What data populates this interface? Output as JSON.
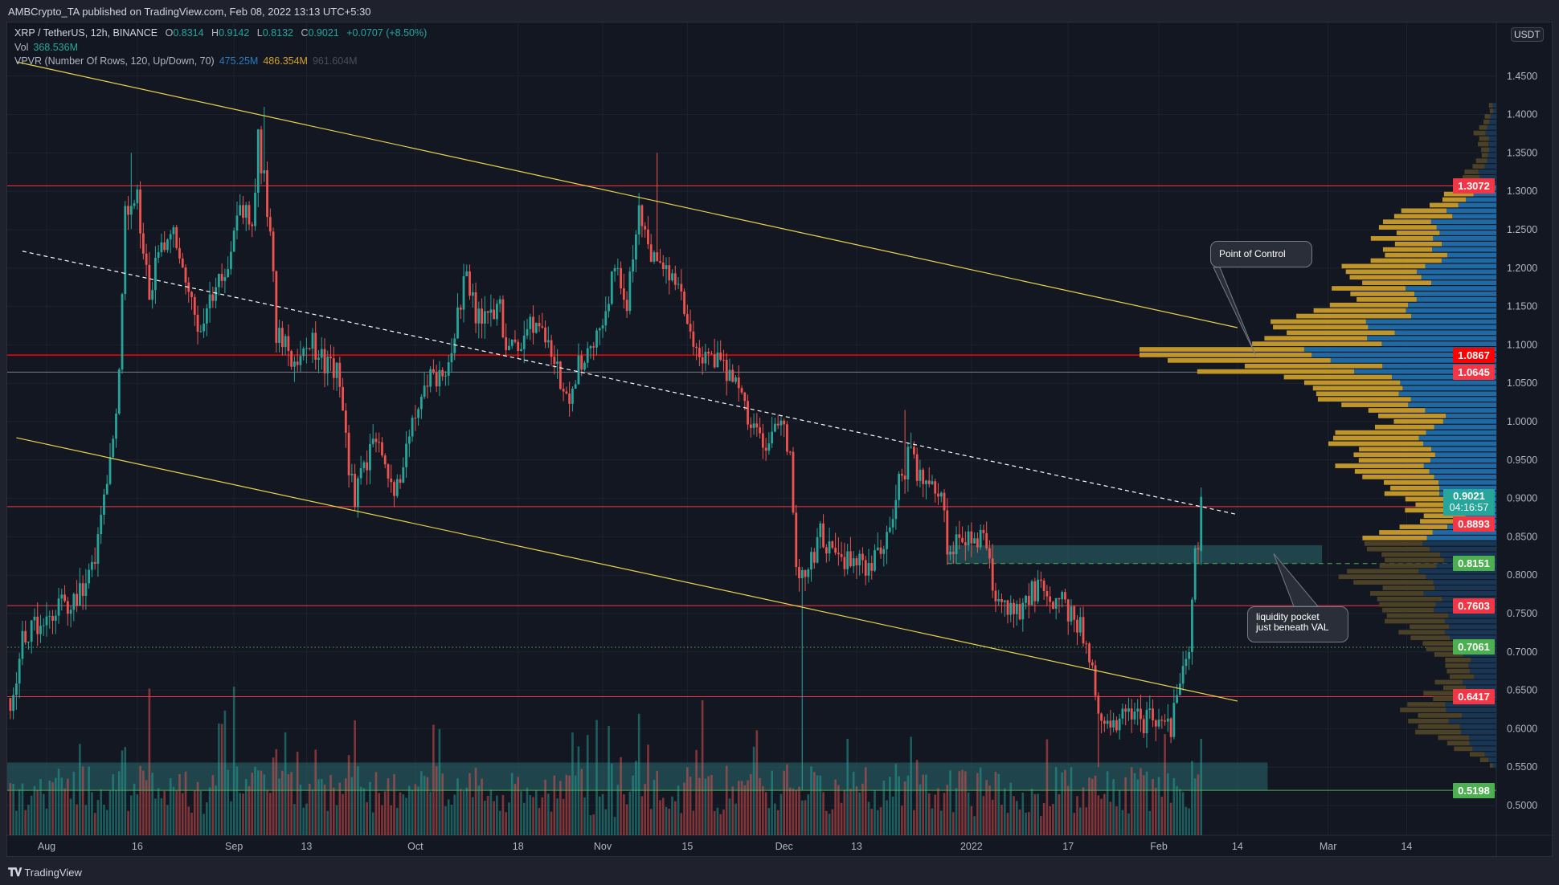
{
  "header": {
    "publisher_line": "AMBCrypto_TA published on TradingView.com, Feb 08, 2022 13:13 UTC+5:30"
  },
  "legend": {
    "symbol": "XRP / TetherUS, 12h, BINANCE",
    "open_label": "O",
    "open": "0.8314",
    "high_label": "H",
    "high": "0.9142",
    "low_label": "L",
    "low": "0.8132",
    "close_label": "C",
    "close": "0.9021",
    "change": "+0.0707 (+8.50%)",
    "vol_label": "Vol",
    "vol": "368.536M",
    "vpvr_label": "VPVR (Number Of Rows, 120, Up/Down, 70)",
    "vpvr_up": "475.25M",
    "vpvr_down": "486.354M",
    "vpvr_total": "961.604M"
  },
  "price_axis": {
    "currency": "USDT",
    "top_hidden_label": "1"
  },
  "footer": {
    "brand": "TradingView",
    "logo_text": "TV"
  },
  "colors": {
    "up": "#26a69a",
    "down": "#ef5350",
    "vp_up": "#1f6aa5",
    "vp_down": "#c0962a",
    "vp_up_dim": "#1a3655",
    "vp_down_dim": "#4b4126",
    "channel": "#e8d44d",
    "level_red": "#f23645",
    "level_green": "#4caf50",
    "box": "#2a6a70"
  },
  "chart_data": {
    "type": "candlestick",
    "interval": "12h",
    "ylim": [
      0.47,
      1.52
    ],
    "grid": true,
    "yticks": [
      "1.4500",
      "1.4000",
      "1.3500",
      "1.3000",
      "1.2500",
      "1.2000",
      "1.1500",
      "1.1000",
      "1.0500",
      "1.0000",
      "0.9500",
      "0.9000",
      "0.8500",
      "0.8000",
      "0.7500",
      "0.7000",
      "0.6500",
      "0.6000",
      "0.5500",
      "0.5000"
    ],
    "xticks": [
      {
        "label": "Aug",
        "date": "2021-08-01"
      },
      {
        "label": "16",
        "date": "2021-08-16"
      },
      {
        "label": "Sep",
        "date": "2021-09-01"
      },
      {
        "label": "13",
        "date": "2021-09-13"
      },
      {
        "label": "Oct",
        "date": "2021-10-01"
      },
      {
        "label": "18",
        "date": "2021-10-18"
      },
      {
        "label": "Nov",
        "date": "2021-11-01"
      },
      {
        "label": "15",
        "date": "2021-11-15"
      },
      {
        "label": "Dec",
        "date": "2021-12-01"
      },
      {
        "label": "13",
        "date": "2021-12-13"
      },
      {
        "label": "2022",
        "date": "2022-01-01"
      },
      {
        "label": "17",
        "date": "2022-01-17"
      },
      {
        "label": "Feb",
        "date": "2022-02-01"
      },
      {
        "label": "14",
        "date": "2022-02-14"
      },
      {
        "label": "Mar",
        "date": "2022-03-01"
      },
      {
        "label": "14",
        "date": "2022-03-14"
      }
    ],
    "close_path": [
      [
        "2021-07-26",
        0.64
      ],
      [
        "2021-07-28",
        0.71
      ],
      [
        "2021-08-01",
        0.75
      ],
      [
        "2021-08-06",
        0.77
      ],
      [
        "2021-08-09",
        0.82
      ],
      [
        "2021-08-11",
        0.93
      ],
      [
        "2021-08-13",
        1.06
      ],
      [
        "2021-08-14",
        1.28
      ],
      [
        "2021-08-16",
        1.29
      ],
      [
        "2021-08-18",
        1.16
      ],
      [
        "2021-08-19",
        1.21
      ],
      [
        "2021-08-22",
        1.26
      ],
      [
        "2021-08-23",
        1.22
      ],
      [
        "2021-08-26",
        1.12
      ],
      [
        "2021-08-28",
        1.15
      ],
      [
        "2021-08-31",
        1.21
      ],
      [
        "2021-09-02",
        1.29
      ],
      [
        "2021-09-04",
        1.26
      ],
      [
        "2021-09-05",
        1.37
      ],
      [
        "2021-09-07",
        1.25
      ],
      [
        "2021-09-08",
        1.11
      ],
      [
        "2021-09-11",
        1.08
      ],
      [
        "2021-09-14",
        1.1
      ],
      [
        "2021-09-18",
        1.06
      ],
      [
        "2021-09-20",
        0.94
      ],
      [
        "2021-09-21",
        0.9
      ],
      [
        "2021-09-24",
        0.98
      ],
      [
        "2021-09-26",
        0.94
      ],
      [
        "2021-09-28",
        0.91
      ],
      [
        "2021-10-01",
        1.005
      ],
      [
        "2021-10-04",
        1.06
      ],
      [
        "2021-10-07",
        1.08
      ],
      [
        "2021-10-09",
        1.19
      ],
      [
        "2021-10-12",
        1.12
      ],
      [
        "2021-10-15",
        1.16
      ],
      [
        "2021-10-16",
        1.08
      ],
      [
        "2021-10-20",
        1.12
      ],
      [
        "2021-10-23",
        1.1
      ],
      [
        "2021-10-26",
        1.03
      ],
      [
        "2021-10-28",
        1.07
      ],
      [
        "2021-10-31",
        1.11
      ],
      [
        "2021-11-03",
        1.2
      ],
      [
        "2021-11-05",
        1.16
      ],
      [
        "2021-11-07",
        1.28
      ],
      [
        "2021-11-09",
        1.225
      ],
      [
        "2021-11-12",
        1.2
      ],
      [
        "2021-11-14",
        1.16
      ],
      [
        "2021-11-17",
        1.08
      ],
      [
        "2021-11-20",
        1.08
      ],
      [
        "2021-11-23",
        1.045
      ],
      [
        "2021-11-25",
        1.005
      ],
      [
        "2021-11-28",
        0.97
      ],
      [
        "2021-11-30",
        0.99
      ],
      [
        "2021-12-02",
        0.97
      ],
      [
        "2021-12-03",
        0.82
      ],
      [
        "2021-12-04",
        0.8
      ],
      [
        "2021-12-07",
        0.85
      ],
      [
        "2021-12-10",
        0.82
      ],
      [
        "2021-12-13",
        0.81
      ],
      [
        "2021-12-17",
        0.82
      ],
      [
        "2021-12-19",
        0.89
      ],
      [
        "2021-12-22",
        0.965
      ],
      [
        "2021-12-24",
        0.915
      ],
      [
        "2021-12-27",
        0.915
      ],
      [
        "2021-12-28",
        0.84
      ],
      [
        "2021-12-31",
        0.84
      ],
      [
        "2022-01-03",
        0.845
      ],
      [
        "2022-01-05",
        0.77
      ],
      [
        "2022-01-08",
        0.745
      ],
      [
        "2022-01-10",
        0.77
      ],
      [
        "2022-01-13",
        0.785
      ],
      [
        "2022-01-15",
        0.77
      ],
      [
        "2022-01-18",
        0.745
      ],
      [
        "2022-01-20",
        0.72
      ],
      [
        "2022-01-22",
        0.63
      ],
      [
        "2022-01-23",
        0.59
      ],
      [
        "2022-01-26",
        0.62
      ],
      [
        "2022-01-29",
        0.61
      ],
      [
        "2022-02-02",
        0.62
      ],
      [
        "2022-02-03",
        0.6
      ],
      [
        "2022-02-05",
        0.67
      ],
      [
        "2022-02-06",
        0.695
      ],
      [
        "2022-02-07",
        0.8314
      ]
    ],
    "last_candle": {
      "date": "2022-02-08",
      "open": 0.8314,
      "high": 0.9142,
      "low": 0.8132,
      "close": 0.9021,
      "volume_m": 368.536
    },
    "extremes": [
      {
        "date": "2021-09-06",
        "high": 1.41
      },
      {
        "date": "2021-08-15",
        "high": 1.35
      },
      {
        "date": "2021-11-10",
        "high": 1.35
      },
      {
        "date": "2021-12-04",
        "low": 0.52
      },
      {
        "date": "2022-01-22",
        "low": 0.55
      },
      {
        "date": "2021-12-21",
        "high": 1.015
      }
    ],
    "levels": [
      {
        "price": "1.3072",
        "color": "#f23645",
        "style": "solid"
      },
      {
        "price": "1.0867",
        "color": "#ff0000",
        "style": "solid"
      },
      {
        "price": "1.0645",
        "color": "#787b86",
        "style": "solid",
        "tag_color": "#f23645"
      },
      {
        "price": "0.8893",
        "color": "#f23645",
        "style": "solid"
      },
      {
        "price": "0.8151",
        "color": "#4caf50",
        "style": "dashed",
        "from": "2021-12-28"
      },
      {
        "price": "0.7603",
        "color": "#f23645",
        "style": "solid"
      },
      {
        "price": "0.7061",
        "color": "#4caf50",
        "style": "dotted"
      },
      {
        "price": "0.6417",
        "color": "#f23645",
        "style": "solid"
      },
      {
        "price": "0.5198",
        "color": "#4caf50",
        "style": "solid"
      }
    ],
    "current_price": {
      "price": "0.9021",
      "countdown": "04:16:57",
      "color": "#26a69a"
    },
    "trendlines": [
      {
        "name": "channel-upper",
        "from": [
          "2021-07-27",
          1.4686
        ],
        "to": [
          "2022-02-14",
          1.1224
        ],
        "color": "#e8d44d",
        "dash": false
      },
      {
        "name": "channel-lower",
        "from": [
          "2021-07-27",
          0.979
        ],
        "to": [
          "2022-02-14",
          0.636
        ],
        "color": "#e8d44d",
        "dash": false
      },
      {
        "name": "channel-midline",
        "from": [
          "2021-07-28",
          1.222
        ],
        "to": [
          "2022-02-14",
          0.879
        ],
        "color": "#ffffff",
        "dash": true
      }
    ],
    "boxes": [
      {
        "name": "liquidity-pocket-box",
        "from": "2021-12-28",
        "to": "2022-02-28",
        "top": 0.839,
        "bottom": 0.8151
      },
      {
        "name": "demand-zone-box",
        "from": "2021-07-25",
        "to": "2022-02-19",
        "top": 0.556,
        "bottom": 0.5198
      }
    ],
    "annotations": [
      {
        "text": "Point of Control",
        "target": [
          "2022-02-17",
          1.0867
        ]
      },
      {
        "text": "liquidity pocket\njust beneath VAL",
        "target": [
          "2022-02-20",
          0.828
        ]
      }
    ],
    "vpvr": {
      "rows": 120,
      "poc": 1.0867,
      "value_area": [
        0.845,
        1.31
      ],
      "profile": [
        [
          1.4,
          3
        ],
        [
          1.375,
          6
        ],
        [
          1.35,
          4
        ],
        [
          1.325,
          8
        ],
        [
          1.3,
          11
        ],
        [
          1.275,
          25
        ],
        [
          1.25,
          32
        ],
        [
          1.225,
          30
        ],
        [
          1.2,
          39
        ],
        [
          1.175,
          44
        ],
        [
          1.15,
          47
        ],
        [
          1.125,
          61
        ],
        [
          1.1,
          67
        ],
        [
          1.0867,
          100
        ],
        [
          1.06,
          69
        ],
        [
          1.04,
          47
        ],
        [
          1.02,
          42
        ],
        [
          1.0,
          33
        ],
        [
          0.975,
          44
        ],
        [
          0.95,
          44
        ],
        [
          0.925,
          33
        ],
        [
          0.9,
          28
        ],
        [
          0.875,
          22
        ],
        [
          0.85,
          33
        ],
        [
          0.825,
          36
        ],
        [
          0.8,
          39
        ],
        [
          0.775,
          36
        ],
        [
          0.75,
          33
        ],
        [
          0.725,
          25
        ],
        [
          0.7,
          19
        ],
        [
          0.675,
          14
        ],
        [
          0.65,
          17
        ],
        [
          0.625,
          25
        ],
        [
          0.6,
          22
        ],
        [
          0.575,
          11
        ],
        [
          0.555,
          3
        ]
      ]
    }
  }
}
